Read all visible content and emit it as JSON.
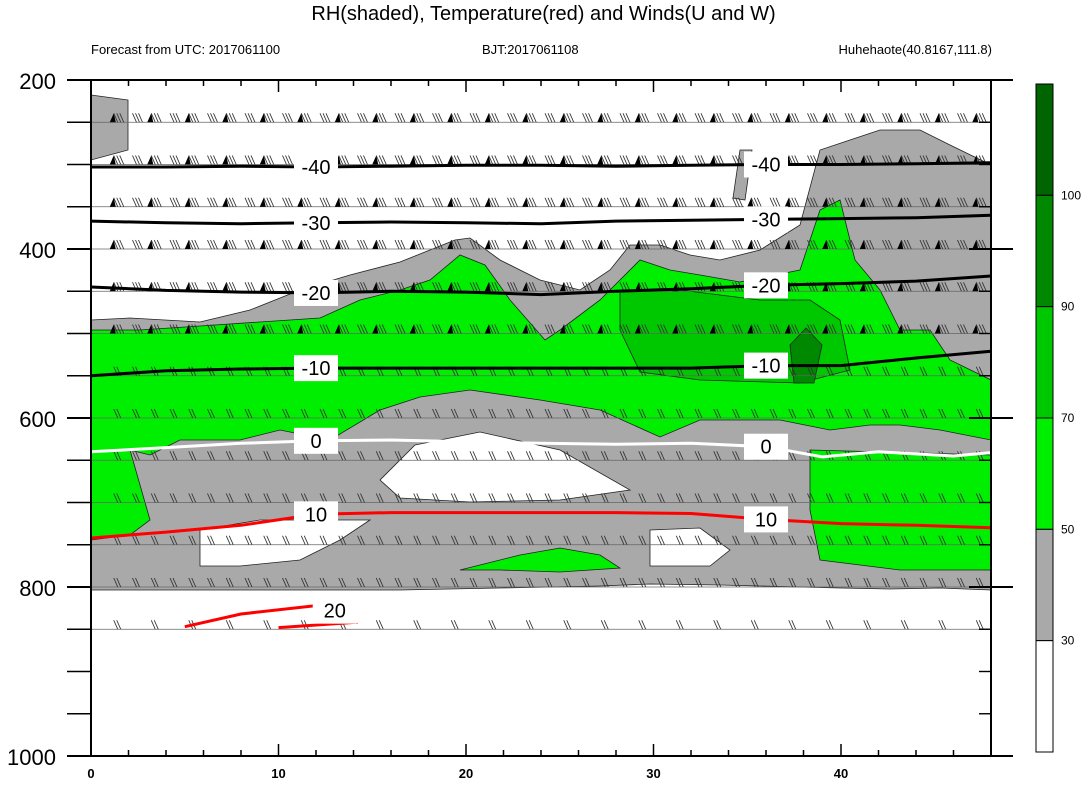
{
  "chart_data": {
    "type": "heatmap",
    "title": "RH(shaded), Temperature(red) and Winds(U and W)",
    "header_left": "Forecast from UTC: 2017061100",
    "header_center": "BJT:2017061108",
    "header_right": "Huhehaote(40.8167,111.8)",
    "x_range": [
      0,
      48
    ],
    "x_ticks": [
      0,
      10,
      20,
      30,
      40
    ],
    "y_range": [
      200,
      1000
    ],
    "y_ticks": [
      200,
      400,
      600,
      800,
      1000
    ],
    "y_inverted": true,
    "colorbar": {
      "levels": [
        30,
        50,
        70,
        90,
        100
      ],
      "colors": [
        "#ffffff",
        "#a9a9a9",
        "#00ee00",
        "#00c800",
        "#008800",
        "#006400"
      ]
    },
    "wind_levels": [
      250,
      300,
      350,
      400,
      450,
      500,
      550,
      600,
      650,
      700,
      750,
      800,
      850
    ],
    "temperature_contours": [
      {
        "label": "-40",
        "color": "#000000",
        "points": [
          [
            0,
            303
          ],
          [
            4,
            303
          ],
          [
            8,
            302
          ],
          [
            12,
            303
          ],
          [
            16,
            302
          ],
          [
            20,
            301
          ],
          [
            24,
            301
          ],
          [
            28,
            302
          ],
          [
            32,
            301
          ],
          [
            36,
            300
          ],
          [
            40,
            300
          ],
          [
            44,
            299
          ],
          [
            48,
            298
          ]
        ]
      },
      {
        "label": "-30",
        "color": "#000000",
        "points": [
          [
            0,
            367
          ],
          [
            4,
            369
          ],
          [
            8,
            370
          ],
          [
            12,
            369
          ],
          [
            16,
            368
          ],
          [
            20,
            369
          ],
          [
            24,
            370
          ],
          [
            28,
            367
          ],
          [
            32,
            366
          ],
          [
            36,
            365
          ],
          [
            40,
            364
          ],
          [
            44,
            363
          ],
          [
            48,
            360
          ]
        ]
      },
      {
        "label": "-20",
        "color": "#000000",
        "points": [
          [
            0,
            445
          ],
          [
            4,
            449
          ],
          [
            8,
            451
          ],
          [
            12,
            452
          ],
          [
            16,
            450
          ],
          [
            20,
            451
          ],
          [
            24,
            454
          ],
          [
            28,
            450
          ],
          [
            32,
            447
          ],
          [
            36,
            443
          ],
          [
            40,
            441
          ],
          [
            44,
            438
          ],
          [
            48,
            432
          ]
        ]
      },
      {
        "label": "-10",
        "color": "#000000",
        "points": [
          [
            0,
            550
          ],
          [
            4,
            544
          ],
          [
            8,
            542
          ],
          [
            12,
            541
          ],
          [
            16,
            541
          ],
          [
            20,
            541
          ],
          [
            24,
            541
          ],
          [
            28,
            541
          ],
          [
            32,
            541
          ],
          [
            36,
            538
          ],
          [
            40,
            538
          ],
          [
            44,
            529
          ],
          [
            48,
            521
          ]
        ]
      },
      {
        "label": "0",
        "color": "#ffffff",
        "points": [
          [
            0,
            640
          ],
          [
            4,
            635
          ],
          [
            8,
            630
          ],
          [
            12,
            627
          ],
          [
            16,
            626
          ],
          [
            20,
            628
          ],
          [
            24,
            630
          ],
          [
            28,
            631
          ],
          [
            32,
            630
          ],
          [
            36,
            634
          ],
          [
            39,
            646
          ],
          [
            42,
            640
          ],
          [
            46,
            645
          ],
          [
            48,
            641
          ]
        ]
      },
      {
        "label": "10",
        "color": "#ff0000",
        "points": [
          [
            0,
            742
          ],
          [
            4,
            735
          ],
          [
            8,
            727
          ],
          [
            12,
            714
          ],
          [
            16,
            712
          ],
          [
            20,
            712
          ],
          [
            24,
            712
          ],
          [
            28,
            712
          ],
          [
            32,
            713
          ],
          [
            36,
            720
          ],
          [
            40,
            725
          ],
          [
            44,
            727
          ],
          [
            48,
            730
          ]
        ]
      },
      {
        "label": "20",
        "color": "#ff0000",
        "points": [
          [
            5,
            847
          ],
          [
            8,
            832
          ],
          [
            12,
            822
          ],
          [
            13,
            828
          ],
          [
            14,
            842
          ],
          [
            10,
            848
          ]
        ]
      }
    ]
  }
}
